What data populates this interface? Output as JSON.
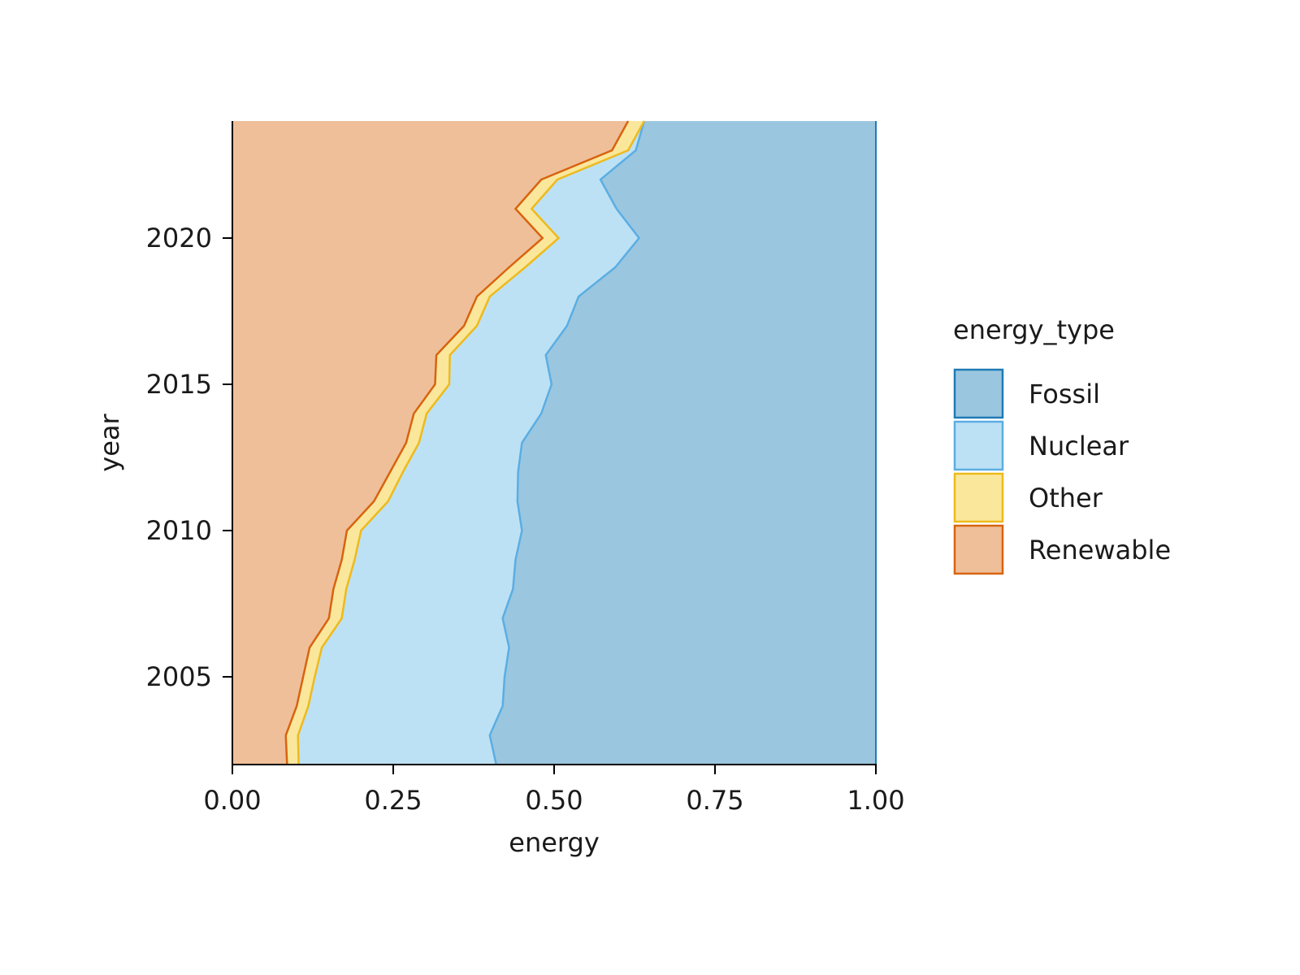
{
  "chart_data": {
    "type": "area",
    "orientation": "horizontal-stacked-fill",
    "xlabel": "energy",
    "ylabel": "year",
    "xlim": [
      0,
      1
    ],
    "ylim": [
      2002,
      2024
    ],
    "x_ticks": [
      "0.00",
      "0.25",
      "0.50",
      "0.75",
      "1.00"
    ],
    "y_ticks": [
      "2005",
      "2010",
      "2015",
      "2020"
    ],
    "legend_title": "energy_type",
    "legend_position": "right",
    "grid": false,
    "years": [
      2002,
      2003,
      2004,
      2005,
      2006,
      2007,
      2008,
      2009,
      2010,
      2011,
      2012,
      2013,
      2014,
      2015,
      2016,
      2017,
      2018,
      2019,
      2020,
      2021,
      2022,
      2023,
      2024
    ],
    "boundaries": {
      "renewable": [
        0.085,
        0.083,
        0.1,
        0.11,
        0.12,
        0.15,
        0.157,
        0.17,
        0.178,
        0.22,
        0.245,
        0.27,
        0.282,
        0.315,
        0.317,
        0.36,
        0.38,
        0.43,
        0.482,
        0.44,
        0.48,
        0.59,
        0.615
      ],
      "other": [
        0.103,
        0.102,
        0.118,
        0.128,
        0.139,
        0.17,
        0.177,
        0.19,
        0.2,
        0.242,
        0.265,
        0.29,
        0.302,
        0.337,
        0.338,
        0.38,
        0.4,
        0.455,
        0.507,
        0.465,
        0.505,
        0.615,
        0.64
      ],
      "nuclear": [
        0.41,
        0.4,
        0.42,
        0.423,
        0.43,
        0.42,
        0.436,
        0.44,
        0.45,
        0.443,
        0.444,
        0.45,
        0.48,
        0.496,
        0.487,
        0.52,
        0.538,
        0.595,
        0.632,
        0.597,
        0.572,
        0.627,
        0.64
      ]
    },
    "series": [
      {
        "name": "Fossil",
        "fill": "#9bc6df",
        "stroke": "#1f7bb6"
      },
      {
        "name": "Nuclear",
        "fill": "#bde1f4",
        "stroke": "#5aaee3"
      },
      {
        "name": "Other",
        "fill": "#fae79b",
        "stroke": "#eeba1c"
      },
      {
        "name": "Renewable",
        "fill": "#efbf99",
        "stroke": "#d8630f"
      }
    ]
  }
}
